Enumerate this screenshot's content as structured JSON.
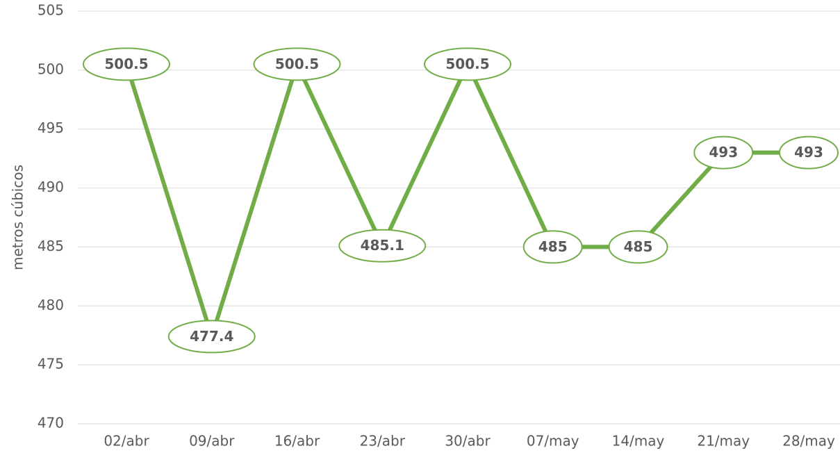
{
  "chart_data": {
    "type": "line",
    "y_label": "metros cúbicos",
    "categories": [
      "02/abr",
      "09/abr",
      "16/abr",
      "23/abr",
      "30/abr",
      "07/may",
      "14/may",
      "21/may",
      "28/may"
    ],
    "values": [
      500.5,
      477.4,
      500.5,
      485.1,
      500.5,
      485,
      485,
      493,
      493
    ],
    "color": "#70ad47",
    "ylim": [
      470,
      505
    ],
    "yticks": [
      470,
      475,
      480,
      485,
      490,
      495,
      500,
      505
    ],
    "grid": true,
    "data_labels": true
  }
}
